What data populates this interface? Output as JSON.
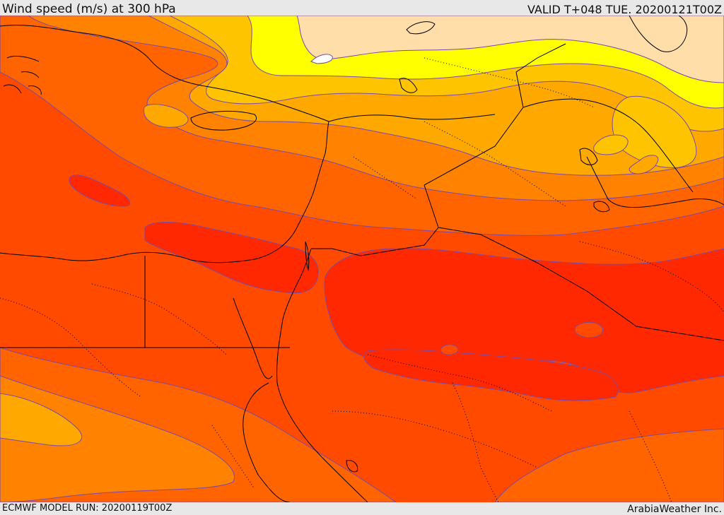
{
  "header": {
    "title": "Wind speed (m/s) at 300 hPa",
    "valid": "VALID T+048 TUE. 20200121T00Z"
  },
  "footer": {
    "model_run": "ECMWF MODEL RUN: 20200119T00Z",
    "credit": "ArabiaWeather Inc."
  },
  "map": {
    "colors": {
      "band_peach": "#ffdeaa",
      "band_yellow": "#ffff00",
      "band_gold": "#ffc400",
      "band_amber": "#ffa800",
      "band_orange": "#ff8200",
      "band_deep_orange": "#ff6400",
      "band_red_orange": "#ff4a00",
      "band_red": "#ff2800",
      "contour": "#7a4aa8",
      "border": "#000000"
    }
  }
}
